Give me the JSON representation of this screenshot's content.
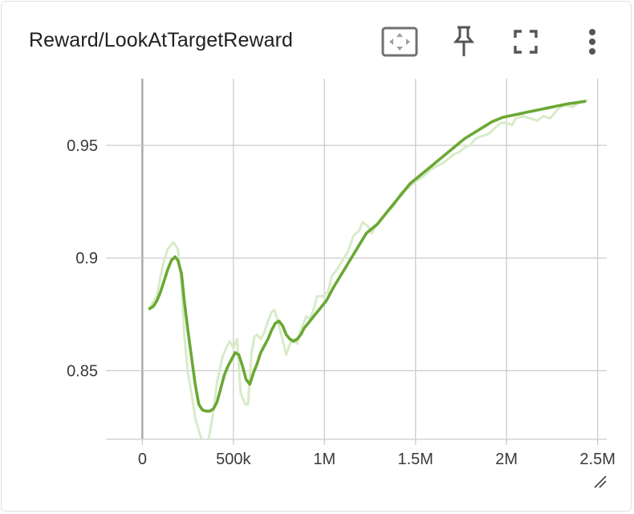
{
  "card": {
    "title": "Reward/LookAtTargetReward"
  },
  "toolbar": {
    "buttons": [
      {
        "name": "fit-domain-button",
        "icon": "fit-domain-icon"
      },
      {
        "name": "pin-button",
        "icon": "pin-icon"
      },
      {
        "name": "fullscreen-button",
        "icon": "fullscreen-icon"
      },
      {
        "name": "more-options-button",
        "icon": "more-vert-icon"
      }
    ]
  },
  "colors": {
    "smoothed": "#6aa834",
    "raw": "#d8ebc8",
    "grid": "#cccccc",
    "zero_axis": "#a6a6a6",
    "text": "#3a3a3a"
  },
  "chart_data": {
    "type": "line",
    "title": "Reward/LookAtTargetReward",
    "xlabel": "",
    "ylabel": "",
    "xlim": [
      -200000,
      2550000
    ],
    "ylim": [
      0.8195,
      0.9796
    ],
    "x_ticks": [
      0,
      500000,
      1000000,
      1500000,
      2000000,
      2500000
    ],
    "x_tick_labels": [
      "0",
      "500k",
      "1M",
      "1.5M",
      "2M",
      "2.5M"
    ],
    "y_ticks": [
      0.85,
      0.9,
      0.95
    ],
    "y_tick_labels": [
      "0.85",
      "0.9",
      "0.95"
    ],
    "grid": true,
    "legend": "none",
    "series": [
      {
        "role": "raw",
        "x": [
          40000,
          80000,
          100000,
          120000,
          140000,
          170000,
          195000,
          215000,
          230000,
          250000,
          270000,
          290000,
          315000,
          340000,
          350000,
          370000,
          390000,
          410000,
          440000,
          460000,
          480000,
          500000,
          520000,
          540000,
          565000,
          580000,
          600000,
          615000,
          630000,
          650000,
          670000,
          690000,
          710000,
          725000,
          740000,
          760000,
          790000,
          810000,
          830000,
          850000,
          870000,
          900000,
          920000,
          940000,
          960000,
          990000,
          1020000,
          1040000,
          1070000,
          1100000,
          1130000,
          1160000,
          1190000,
          1210000,
          1240000,
          1260000,
          1280000,
          1310000,
          1340000,
          1380000,
          1420000,
          1460000,
          1500000,
          1540000,
          1580000,
          1620000,
          1650000,
          1680000,
          1710000,
          1740000,
          1770000,
          1800000,
          1830000,
          1860000,
          1900000,
          1940000,
          1970000,
          2000000,
          2030000,
          2050000,
          2090000,
          2130000,
          2170000,
          2200000,
          2240000,
          2280000,
          2320000,
          2360000,
          2400000,
          2440000
        ],
        "values": [
          0.878,
          0.883,
          0.892,
          0.899,
          0.904,
          0.907,
          0.904,
          0.888,
          0.866,
          0.849,
          0.84,
          0.829,
          0.822,
          0.816,
          0.814,
          0.822,
          0.832,
          0.845,
          0.856,
          0.86,
          0.863,
          0.86,
          0.864,
          0.84,
          0.835,
          0.835,
          0.858,
          0.865,
          0.866,
          0.864,
          0.867,
          0.872,
          0.876,
          0.877,
          0.873,
          0.867,
          0.857,
          0.862,
          0.864,
          0.862,
          0.868,
          0.874,
          0.873,
          0.877,
          0.883,
          0.883,
          0.885,
          0.892,
          0.895,
          0.899,
          0.903,
          0.91,
          0.912,
          0.916,
          0.914,
          0.911,
          0.914,
          0.917,
          0.92,
          0.923,
          0.929,
          0.931,
          0.934,
          0.936,
          0.939,
          0.941,
          0.942,
          0.944,
          0.946,
          0.947,
          0.949,
          0.95,
          0.953,
          0.954,
          0.955,
          0.958,
          0.96,
          0.96,
          0.959,
          0.962,
          0.963,
          0.962,
          0.961,
          0.963,
          0.962,
          0.966,
          0.968,
          0.967,
          0.969,
          0.97
        ]
      },
      {
        "role": "smoothed",
        "x": [
          40000,
          60000,
          80000,
          100000,
          120000,
          140000,
          160000,
          180000,
          195000,
          215000,
          230000,
          250000,
          270000,
          290000,
          310000,
          330000,
          350000,
          370000,
          390000,
          410000,
          430000,
          450000,
          470000,
          490000,
          510000,
          530000,
          550000,
          570000,
          590000,
          610000,
          630000,
          650000,
          670000,
          690000,
          710000,
          730000,
          750000,
          770000,
          790000,
          810000,
          830000,
          850000,
          870000,
          890000,
          910000,
          930000,
          950000,
          970000,
          990000,
          1010000,
          1030000,
          1050000,
          1080000,
          1110000,
          1140000,
          1170000,
          1200000,
          1230000,
          1260000,
          1290000,
          1320000,
          1350000,
          1380000,
          1410000,
          1440000,
          1470000,
          1500000,
          1530000,
          1560000,
          1590000,
          1620000,
          1650000,
          1680000,
          1710000,
          1740000,
          1770000,
          1800000,
          1830000,
          1860000,
          1890000,
          1920000,
          1950000,
          1980000,
          2010000,
          2040000,
          2070000,
          2100000,
          2130000,
          2160000,
          2190000,
          2220000,
          2250000,
          2280000,
          2310000,
          2340000,
          2370000,
          2400000,
          2430000
        ],
        "values": [
          0.8775,
          0.8785,
          0.881,
          0.885,
          0.89,
          0.895,
          0.899,
          0.9005,
          0.899,
          0.893,
          0.881,
          0.868,
          0.856,
          0.844,
          0.835,
          0.8325,
          0.832,
          0.832,
          0.833,
          0.836,
          0.842,
          0.848,
          0.852,
          0.855,
          0.858,
          0.857,
          0.852,
          0.846,
          0.844,
          0.849,
          0.853,
          0.858,
          0.861,
          0.864,
          0.868,
          0.871,
          0.872,
          0.87,
          0.866,
          0.864,
          0.863,
          0.864,
          0.866,
          0.869,
          0.871,
          0.873,
          0.875,
          0.877,
          0.879,
          0.881,
          0.884,
          0.887,
          0.891,
          0.895,
          0.899,
          0.903,
          0.907,
          0.911,
          0.913,
          0.915,
          0.918,
          0.921,
          0.924,
          0.927,
          0.93,
          0.933,
          0.935,
          0.937,
          0.939,
          0.941,
          0.943,
          0.945,
          0.947,
          0.949,
          0.951,
          0.953,
          0.9545,
          0.956,
          0.9575,
          0.959,
          0.9605,
          0.9615,
          0.9625,
          0.963,
          0.9635,
          0.964,
          0.9645,
          0.965,
          0.9655,
          0.966,
          0.9665,
          0.967,
          0.9675,
          0.968,
          0.9685,
          0.9688,
          0.9692,
          0.9695
        ]
      }
    ]
  }
}
